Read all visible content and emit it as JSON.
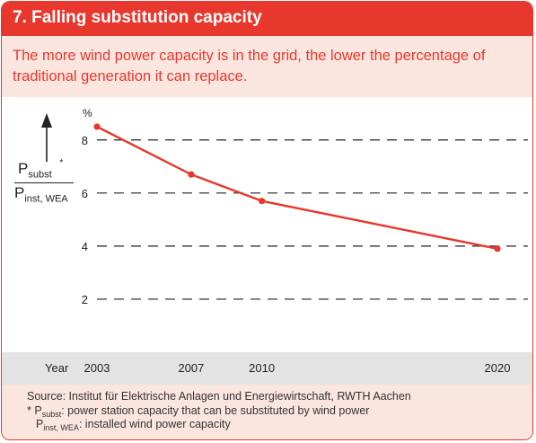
{
  "header": {
    "title": "7. Falling substitution capacity",
    "subtitle": "The more wind power capacity is in the grid, the lower the percentage of traditional generation it can replace."
  },
  "chart_data": {
    "type": "line",
    "title": "7. Falling substitution capacity",
    "xlabel": "Year",
    "ylabel_numerator": "P",
    "ylabel_numerator_sub": "subst",
    "ylabel_numerator_mark": "*",
    "ylabel_denominator": "P",
    "ylabel_denominator_sub": "inst, WEA",
    "yunit": "%",
    "x": [
      2003,
      2007,
      2010,
      2020
    ],
    "x_tick_labels": [
      "2003",
      "2007",
      "2010",
      "2020"
    ],
    "y_tick_labels": [
      "2",
      "4",
      "6",
      "8"
    ],
    "series": [
      {
        "values": [
          8.5,
          6.7,
          5.7,
          3.9
        ],
        "color": "#e8382e"
      }
    ],
    "xlim": [
      2003,
      2020
    ],
    "ylim": [
      0,
      8.5
    ],
    "grid": "dashed horizontal"
  },
  "source": {
    "line1": "Source: Institut für Elektrische Anlagen und Energiewirtschaft, RWTH Aachen",
    "fn1_prefix": "* P",
    "fn1_sub": "subst",
    "fn1_text": ": power station capacity that can be substituted by wind power",
    "fn2_prefix": "P",
    "fn2_sub": "inst, WEA",
    "fn2_text": ": installed wind power capacity"
  },
  "colors": {
    "accent": "#e8382e",
    "tint": "#fbe6df",
    "axisband": "#e3e3e3"
  }
}
